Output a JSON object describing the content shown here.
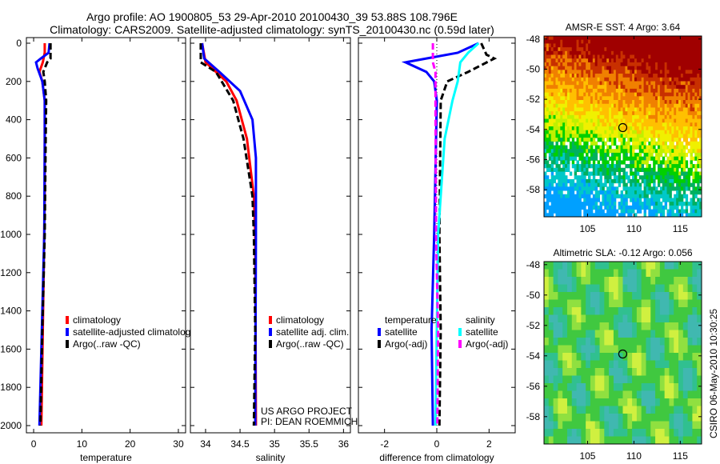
{
  "title": {
    "line1": "Argo profile: AO 1900805_53 29-Apr-2010 20100430_39 53.88S 108.796E",
    "line2": "Climatology: CARS2009. Satellite-adjusted climatology: synTS_20100430.nc (0.59d later)"
  },
  "colors": {
    "climatology": "#ff0000",
    "satellite": "#0000ff",
    "argo": "#000000",
    "sal_satellite": "#00ffff",
    "sal_argo": "#ff00ff"
  },
  "chart_data": [
    {
      "type": "line",
      "xlabel": "temperature",
      "ylabel": "",
      "xlim": [
        -1.5,
        31.5
      ],
      "ylim": [
        2060,
        0
      ],
      "xticks": [
        "0",
        "10",
        "20",
        "30"
      ],
      "xtick_values": [
        0,
        10,
        20,
        30
      ],
      "yticks": [
        "0",
        "200",
        "400",
        "600",
        "800",
        "1000",
        "1200",
        "1400",
        "1600",
        "1800",
        "2000"
      ],
      "legend": [
        "climatology",
        "satellite-adjusted climatolog",
        "Argo(..raw -QC)"
      ],
      "series": [
        {
          "name": "climatology",
          "color": "#ff0000",
          "dash": false,
          "depth": [
            0,
            50,
            100,
            150,
            200,
            300,
            500,
            800,
            1000,
            1500,
            2000
          ],
          "values": [
            2.3,
            2.3,
            1.9,
            1.2,
            1.8,
            2.3,
            2.3,
            2.3,
            2.2,
            1.9,
            1.6
          ]
        },
        {
          "name": "satellite-adjusted climatology",
          "color": "#0000ff",
          "dash": false,
          "depth": [
            0,
            50,
            80,
            100,
            130,
            200,
            300,
            500,
            1000,
            1500,
            2000
          ],
          "values": [
            3.3,
            3.1,
            1.5,
            0.5,
            0.8,
            1.8,
            2.3,
            2.3,
            2.2,
            1.7,
            1.2
          ]
        },
        {
          "name": "Argo(..raw -QC)",
          "color": "#000000",
          "dash": true,
          "depth": [
            0,
            80,
            100,
            150,
            200,
            300,
            500,
            1000,
            1500,
            2000
          ],
          "values": [
            3.5,
            3.5,
            2.8,
            2.0,
            2.3,
            2.6,
            2.5,
            2.3,
            1.8,
            1.4
          ]
        }
      ]
    },
    {
      "type": "line",
      "xlabel": "salinity",
      "xlim": [
        33.78,
        36.1
      ],
      "ylim": [
        2060,
        0
      ],
      "xticks": [
        "34",
        "34.5",
        "35",
        "35.5",
        "36"
      ],
      "xtick_values": [
        34,
        34.5,
        35,
        35.5,
        36
      ],
      "legend": [
        "climatology",
        "satellite adj. clim.",
        "Argo(..raw -QC)"
      ],
      "annotation": [
        "US ARGO PROJECT",
        "PI: DEAN ROEMMICH"
      ],
      "series": [
        {
          "name": "climatology",
          "color": "#ff0000",
          "dash": false,
          "depth": [
            0,
            100,
            200,
            300,
            500,
            800,
            1000,
            2000
          ],
          "values": [
            33.95,
            34.0,
            34.3,
            34.45,
            34.6,
            34.7,
            34.72,
            34.73
          ]
        },
        {
          "name": "satellite adj. clim.",
          "color": "#0000ff",
          "dash": false,
          "depth": [
            0,
            80,
            150,
            250,
            400,
            600,
            1000,
            2000
          ],
          "values": [
            33.95,
            33.98,
            34.2,
            34.5,
            34.68,
            34.73,
            34.73,
            34.72
          ]
        },
        {
          "name": "Argo(..raw -QC)",
          "color": "#000000",
          "dash": true,
          "depth": [
            0,
            100,
            150,
            300,
            500,
            800,
            1000,
            1500,
            2000
          ],
          "values": [
            33.93,
            33.93,
            34.15,
            34.4,
            34.55,
            34.68,
            34.7,
            34.72,
            34.7
          ]
        }
      ]
    },
    {
      "type": "line",
      "xlabel": "difference from climatology",
      "xlim": [
        -3,
        3
      ],
      "ylim": [
        2060,
        0
      ],
      "xticks": [
        "-2",
        "0",
        "2"
      ],
      "xtick_values": [
        -2,
        0,
        2
      ],
      "legend_titles": [
        "temperature",
        "salinity"
      ],
      "legend": [
        "satellite",
        "Argo(-adj)",
        "satellite",
        "Argo(-adj)"
      ],
      "series": [
        {
          "name": "temperature satellite",
          "color": "#0000ff",
          "dash": false,
          "depth": [
            0,
            50,
            80,
            100,
            150,
            200,
            300,
            1000,
            1500,
            2000
          ],
          "values": [
            1.6,
            0.8,
            -0.4,
            -1.2,
            -0.4,
            -0.1,
            0,
            -0.1,
            -0.2,
            -0.15
          ]
        },
        {
          "name": "temperature Argo(-adj)",
          "color": "#000000",
          "dash": true,
          "depth": [
            0,
            60,
            80,
            150,
            200,
            300,
            1000,
            1500,
            2000
          ],
          "values": [
            1.7,
            1.9,
            2.2,
            1.2,
            0.4,
            0.15,
            0.1,
            0.15,
            0.1
          ]
        },
        {
          "name": "salinity satellite",
          "color": "#00ffff",
          "dash": false,
          "depth": [
            0,
            50,
            100,
            200,
            300,
            500,
            1000,
            2000
          ],
          "values": [
            1.6,
            1.2,
            0.9,
            0.8,
            0.6,
            0.3,
            0.05,
            -0.05
          ]
        },
        {
          "name": "salinity Argo(-adj)",
          "color": "#ff00ff",
          "dash": true,
          "depth": [
            0,
            100,
            150,
            300,
            1000,
            1500,
            2000
          ],
          "values": [
            -0.15,
            -0.15,
            -0.05,
            -0.05,
            -0.03,
            0.05,
            0.02
          ]
        }
      ]
    },
    {
      "type": "heatmap",
      "title": "AMSR-E SST: 4 Argo: 3.64",
      "xlim": [
        100.3,
        117.3
      ],
      "ylim": [
        -59.8,
        -47.8
      ],
      "xticks": [
        "105",
        "110",
        "115"
      ],
      "xtick_values": [
        105,
        110,
        115
      ],
      "yticks": [
        "-48",
        "-50",
        "-52",
        "-54",
        "-56",
        "-58"
      ],
      "ytick_values": [
        -48,
        -50,
        -52,
        -54,
        -56,
        -58
      ],
      "marker": {
        "lon": 108.796,
        "lat": -53.88
      }
    },
    {
      "type": "heatmap",
      "title": "Altimetric SLA: -0.12 Argo: 0.056",
      "xlim": [
        100.3,
        117.3
      ],
      "ylim": [
        -59.8,
        -47.8
      ],
      "xticks": [
        "105",
        "110",
        "115"
      ],
      "xtick_values": [
        105,
        110,
        115
      ],
      "yticks": [
        "-48",
        "-50",
        "-52",
        "-54",
        "-56",
        "-58"
      ],
      "ytick_values": [
        -48,
        -50,
        -52,
        -54,
        -56,
        -58
      ],
      "marker": {
        "lon": 108.796,
        "lat": -53.88
      }
    }
  ],
  "footer": "CSIRO 06-May-2010 10:30:25"
}
